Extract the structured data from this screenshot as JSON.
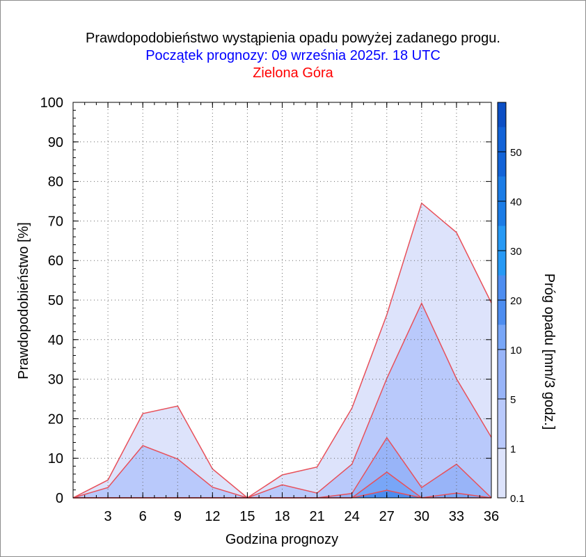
{
  "colors": {
    "title": "#000000",
    "subtitle": "#0000ff",
    "station": "#ff0000",
    "outline": "#e8505a",
    "levels": [
      "#dde3fb",
      "#b9c9fb",
      "#98b4f8",
      "#78a6f7",
      "#4d8df0",
      "#2699f5",
      "#1b7ce6",
      "#1263d8",
      "#0c4fc5",
      "#093ea8"
    ]
  },
  "chart_data": {
    "type": "area",
    "title": "Prawdopodobieństwo wystąpienia opadu powyżej zadanego progu.",
    "subtitle": "Początek prognozy: 09 września 2025r. 18 UTC",
    "station": "Zielona Góra",
    "xlabel": "Godzina prognozy",
    "ylabel": "Prawdopodobieństwo [%]",
    "colorbar_label": "Próg opadu [mm/3 godz.]",
    "xlim": [
      0,
      36
    ],
    "ylim": [
      0,
      100
    ],
    "x_ticks": [
      3,
      6,
      9,
      12,
      15,
      18,
      21,
      24,
      27,
      30,
      33,
      36
    ],
    "y_ticks": [
      0,
      10,
      20,
      30,
      40,
      50,
      60,
      70,
      80,
      90,
      100
    ],
    "colorbar_ticks": [
      "0.1",
      "1",
      "5",
      "10",
      "20",
      "30",
      "40",
      "50"
    ],
    "grid": true,
    "x": [
      0,
      3,
      6,
      9,
      12,
      15,
      18,
      21,
      24,
      27,
      30,
      33,
      36
    ],
    "series": [
      {
        "threshold": "0.1",
        "values": [
          0,
          4.5,
          21.3,
          23.2,
          7.3,
          0,
          5.8,
          7.8,
          22.7,
          46.3,
          74.5,
          67.1,
          49.3
        ]
      },
      {
        "threshold": "1",
        "values": [
          0,
          2.6,
          13.2,
          9.8,
          2.7,
          0,
          3.3,
          1.2,
          8.5,
          30.2,
          49.2,
          30.1,
          15.3
        ]
      },
      {
        "threshold": "5",
        "values": [
          0,
          0,
          0,
          0,
          0,
          0,
          0,
          0,
          1.1,
          15.2,
          2.6,
          8.5,
          0
        ]
      },
      {
        "threshold": "10",
        "values": [
          0,
          0,
          0,
          0,
          0,
          0,
          0,
          0,
          0,
          6.5,
          0,
          1.2,
          0
        ]
      },
      {
        "threshold": "20",
        "values": [
          0,
          0,
          0,
          0,
          0,
          0,
          0,
          0,
          0,
          1.9,
          0,
          0,
          0
        ]
      }
    ]
  }
}
